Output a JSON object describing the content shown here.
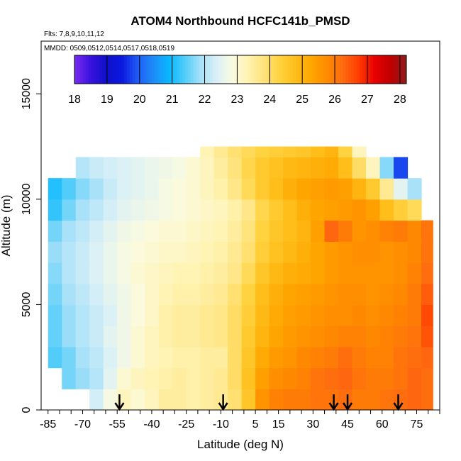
{
  "chart_data": {
    "type": "heatmap",
    "title": "ATOM4 Northbound HCFC141b_PMSD",
    "subtitle_flights": "Flts: 7,8,9,10,11,12",
    "subtitle_dates": "MMDD: 0509,0512,0514,0517,0518,0519",
    "xlabel": "Latitude (deg N)",
    "ylabel": "Altitude (m)",
    "xlim": [
      -88,
      85
    ],
    "ylim": [
      0,
      17500
    ],
    "x_ticks": [
      -85,
      -70,
      -55,
      -40,
      -25,
      -10,
      5,
      15,
      30,
      45,
      60,
      75
    ],
    "y_ticks": [
      0,
      5000,
      10000,
      15000
    ],
    "colorbar": {
      "min": 18,
      "max": 28.2,
      "ticks": [
        18,
        19,
        20,
        21,
        22,
        23,
        24,
        25,
        26,
        27,
        28
      ],
      "colors": [
        "#7b2cf0",
        "#3a12e0",
        "#1010c8",
        "#0a18e0",
        "#1f5cf5",
        "#1e8cf7",
        "#08b8ff",
        "#52cdfa",
        "#a8e1f8",
        "#daf0f6",
        "#fbfbe0",
        "#fff3b0",
        "#ffe27a",
        "#ffd23e",
        "#ffbe1a",
        "#ffa600",
        "#ff8a00",
        "#ff6a10",
        "#ff3c00",
        "#e80000",
        "#c00000",
        "#8c1c1c"
      ]
    },
    "profile_latitudes": [
      -54,
      -9,
      39,
      45,
      67
    ],
    "field": {
      "lat_edges": [
        -85,
        -79,
        -73,
        -67,
        -61,
        -55,
        -49,
        -43,
        -37,
        -31,
        -25,
        -19,
        -13,
        -7,
        -1,
        5,
        11,
        17,
        23,
        29,
        35,
        41,
        47,
        53,
        59,
        65,
        71,
        77,
        82
      ],
      "alt_edges": [
        0,
        1000,
        2000,
        3000,
        4000,
        5000,
        6000,
        7000,
        8000,
        9000,
        10000,
        11000,
        12000,
        12500
      ],
      "values": [
        [
          null,
          null,
          null,
          22.3,
          22.8,
          23.2,
          23.0,
          23.2,
          23.5,
          23.5,
          23.4,
          23.5,
          23.6,
          23.9,
          24.6,
          25.6,
          25.9,
          26.0,
          26.0,
          26.1,
          26.1,
          26.2,
          26.0,
          26.0,
          26.1,
          26.2,
          26.3,
          26.2
        ],
        [
          null,
          21.6,
          21.8,
          22.0,
          22.5,
          23.0,
          23.2,
          23.3,
          23.4,
          23.5,
          23.4,
          23.5,
          23.6,
          24.0,
          24.7,
          25.4,
          25.7,
          25.8,
          25.9,
          26.1,
          26.2,
          26.3,
          26.1,
          26.0,
          26.0,
          26.1,
          26.3,
          26.2
        ],
        [
          21.4,
          21.6,
          21.9,
          22.1,
          22.4,
          22.7,
          23.0,
          23.2,
          23.3,
          23.4,
          23.4,
          23.5,
          23.5,
          24.0,
          24.6,
          25.2,
          25.5,
          25.6,
          25.8,
          25.9,
          26.0,
          26.2,
          26.0,
          25.9,
          25.9,
          26.1,
          26.2,
          26.3
        ],
        [
          21.5,
          21.8,
          22.0,
          22.2,
          22.5,
          22.7,
          23.0,
          23.2,
          23.4,
          23.5,
          23.5,
          23.6,
          23.7,
          24.0,
          24.5,
          25.0,
          25.3,
          25.5,
          25.6,
          25.7,
          25.8,
          25.9,
          25.9,
          25.8,
          25.9,
          26.0,
          26.1,
          26.5
        ],
        [
          21.5,
          21.8,
          22.0,
          22.2,
          22.4,
          22.7,
          22.9,
          23.1,
          23.4,
          23.5,
          23.5,
          23.6,
          23.7,
          24.0,
          24.4,
          24.9,
          25.2,
          25.4,
          25.5,
          25.6,
          25.7,
          25.7,
          25.8,
          25.7,
          25.8,
          25.9,
          26.0,
          26.6
        ],
        [
          21.6,
          21.9,
          22.1,
          22.3,
          22.5,
          22.7,
          22.9,
          23.1,
          23.3,
          23.4,
          23.4,
          23.5,
          23.6,
          23.9,
          24.3,
          24.8,
          25.1,
          25.3,
          25.4,
          25.5,
          25.6,
          25.7,
          25.7,
          25.6,
          25.7,
          25.8,
          26.0,
          26.4
        ],
        [
          21.7,
          22.0,
          22.2,
          22.4,
          22.6,
          22.8,
          23.0,
          23.1,
          23.2,
          23.3,
          23.3,
          23.4,
          23.5,
          23.7,
          24.1,
          24.6,
          24.9,
          25.1,
          25.2,
          25.3,
          25.5,
          25.6,
          25.6,
          25.6,
          25.6,
          25.7,
          25.9,
          26.2
        ],
        [
          21.8,
          22.0,
          22.2,
          22.4,
          22.6,
          22.8,
          22.9,
          23.0,
          23.1,
          23.1,
          23.2,
          23.3,
          23.4,
          23.6,
          23.9,
          24.4,
          24.7,
          24.9,
          25.1,
          25.3,
          25.5,
          25.6,
          25.7,
          25.7,
          25.6,
          25.7,
          25.8,
          26.1
        ],
        [
          21.6,
          21.9,
          22.1,
          22.3,
          22.5,
          22.7,
          22.8,
          22.9,
          23.0,
          23.0,
          23.1,
          23.2,
          23.3,
          23.5,
          23.8,
          24.3,
          24.6,
          24.8,
          25.0,
          25.4,
          26.3,
          26.0,
          25.6,
          25.7,
          25.9,
          26.0,
          25.8,
          26.1
        ],
        [
          21.2,
          21.6,
          21.9,
          22.1,
          22.3,
          22.5,
          22.6,
          22.7,
          22.8,
          22.9,
          23.0,
          23.1,
          23.2,
          23.4,
          23.7,
          24.2,
          24.5,
          24.8,
          25.1,
          25.3,
          25.4,
          25.5,
          25.6,
          25.4,
          24.8,
          24.4,
          24.1,
          null
        ],
        [
          21.1,
          21.4,
          21.7,
          21.9,
          22.2,
          22.4,
          22.5,
          22.6,
          22.8,
          22.9,
          23.0,
          23.2,
          23.4,
          23.7,
          24.1,
          24.5,
          24.8,
          25.1,
          25.3,
          25.4,
          25.5,
          25.4,
          25.0,
          24.5,
          23.6,
          22.5,
          21.9,
          null
        ],
        [
          null,
          null,
          22.0,
          22.2,
          22.3,
          22.4,
          22.5,
          22.6,
          22.7,
          22.8,
          23.0,
          23.2,
          23.5,
          23.8,
          24.2,
          24.5,
          24.7,
          24.9,
          25.0,
          25.1,
          25.2,
          24.8,
          24.0,
          23.2,
          21.7,
          19.8,
          null,
          null
        ],
        [
          null,
          null,
          null,
          null,
          null,
          null,
          null,
          null,
          null,
          null,
          null,
          23.3,
          23.6,
          23.9,
          24.1,
          24.3,
          24.4,
          24.5,
          24.6,
          24.8,
          25.0,
          24.3,
          23.2,
          null,
          null,
          null,
          null,
          null
        ]
      ]
    }
  }
}
